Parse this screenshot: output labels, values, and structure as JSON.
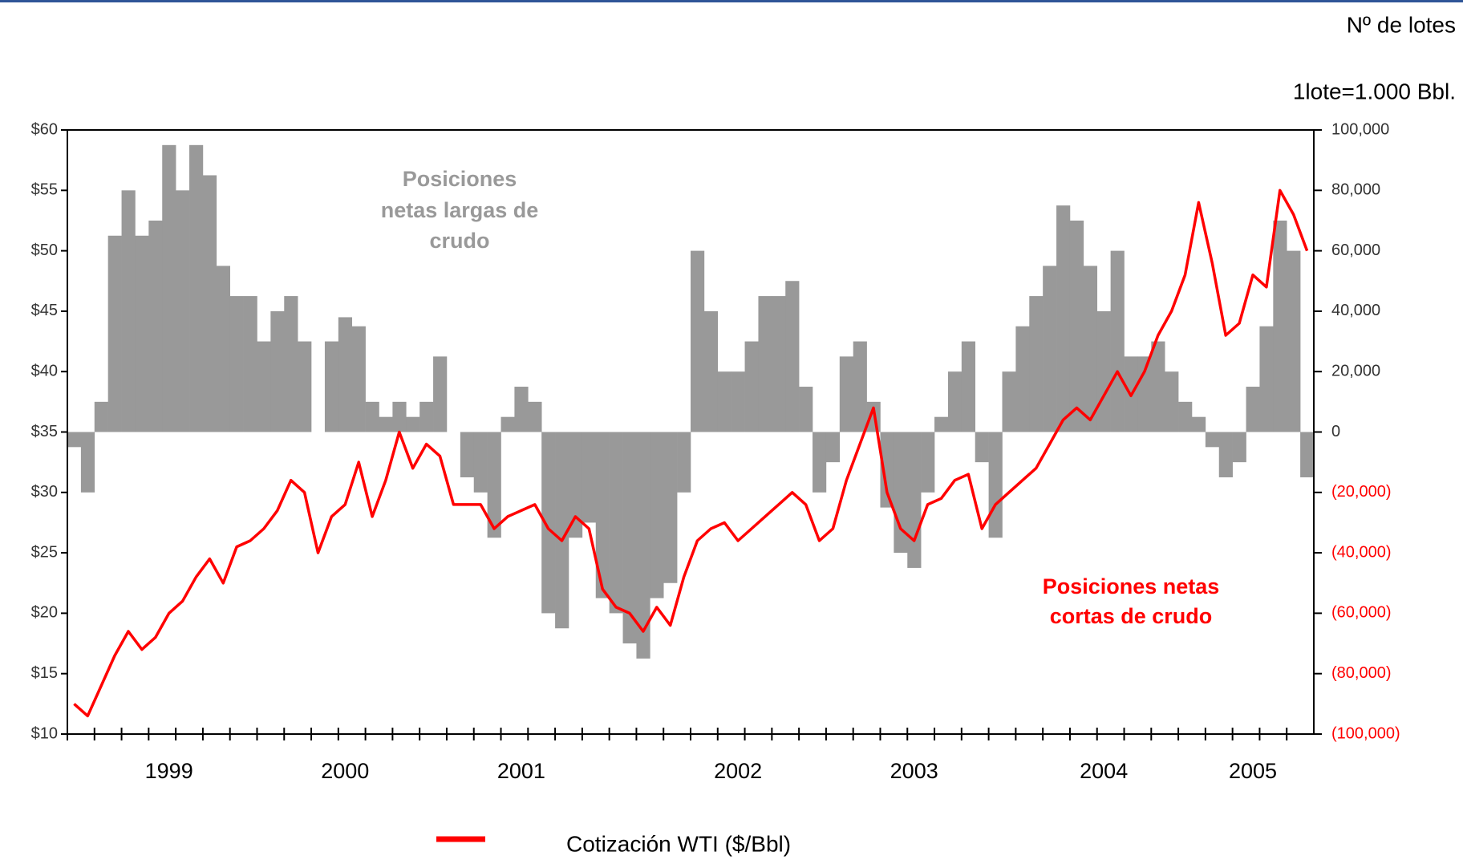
{
  "chart_data": {
    "type": "combo",
    "y2_label": [
      "Nº de lotes",
      "1lote=1.000 Bbl."
    ],
    "categories": [
      null,
      null,
      null,
      null,
      null,
      null,
      null,
      "1999",
      null,
      null,
      null,
      null,
      null,
      null,
      null,
      null,
      null,
      null,
      null,
      null,
      "2000",
      null,
      null,
      null,
      null,
      null,
      null,
      null,
      null,
      null,
      null,
      null,
      null,
      "2001",
      null,
      null,
      null,
      null,
      null,
      null,
      null,
      null,
      null,
      null,
      null,
      null,
      null,
      null,
      null,
      "2002",
      null,
      null,
      null,
      null,
      null,
      null,
      null,
      null,
      null,
      null,
      null,
      null,
      "2003",
      null,
      null,
      null,
      null,
      null,
      null,
      null,
      null,
      null,
      null,
      null,
      null,
      null,
      "2004",
      null,
      null,
      null,
      null,
      null,
      null,
      null,
      null,
      null,
      null,
      "2005",
      null,
      null,
      null,
      null
    ],
    "series": [
      {
        "type": "bar",
        "axis": "y2",
        "color": "#999999",
        "values": [
          -5000,
          -20000,
          10000,
          65000,
          80000,
          65000,
          70000,
          95000,
          80000,
          95000,
          85000,
          55000,
          45000,
          45000,
          30000,
          40000,
          45000,
          30000,
          0,
          30000,
          38000,
          35000,
          10000,
          5000,
          10000,
          5000,
          10000,
          25000,
          0,
          -15000,
          -20000,
          -35000,
          5000,
          15000,
          10000,
          -60000,
          -65000,
          -35000,
          -30000,
          -55000,
          -60000,
          -70000,
          -75000,
          -55000,
          -50000,
          -20000,
          60000,
          40000,
          20000,
          20000,
          30000,
          45000,
          45000,
          50000,
          15000,
          -20000,
          -10000,
          25000,
          30000,
          10000,
          -25000,
          -40000,
          -45000,
          -20000,
          5000,
          20000,
          30000,
          -10000,
          -35000,
          20000,
          35000,
          45000,
          55000,
          75000,
          70000,
          55000,
          40000,
          60000,
          25000,
          25000,
          30000,
          20000,
          10000,
          5000,
          -5000,
          -15000,
          -10000,
          15000,
          35000,
          70000,
          60000,
          -15000
        ]
      },
      {
        "type": "line",
        "axis": "y",
        "name": "Cotización WTI  ($/Bbl)",
        "color": "#ff0000",
        "values": [
          12.5,
          11.5,
          14,
          16.5,
          18.5,
          17,
          18,
          20,
          21,
          23,
          24.5,
          22.5,
          25.5,
          26,
          27,
          28.5,
          31,
          30,
          25,
          28,
          29,
          32.5,
          28,
          31,
          35,
          32,
          34,
          33,
          29,
          29,
          29,
          27,
          28,
          28.5,
          29,
          27,
          26,
          28,
          27,
          22,
          20.5,
          20,
          18.5,
          20.5,
          19,
          23,
          26,
          27,
          27.5,
          26,
          27,
          28,
          29,
          30,
          29,
          26,
          27,
          31,
          34,
          37,
          30,
          27,
          26,
          29,
          29.5,
          31,
          31.5,
          27,
          29,
          30,
          31,
          32,
          34,
          36,
          37,
          36,
          38,
          40,
          38,
          40,
          43,
          45,
          48,
          54,
          49,
          43,
          44,
          48,
          47,
          55,
          53,
          50
        ]
      }
    ],
    "ylim": [
      10,
      60
    ],
    "yticks": [
      {
        "value": 10,
        "label": "$10"
      },
      {
        "value": 15,
        "label": "$15"
      },
      {
        "value": 20,
        "label": "$20"
      },
      {
        "value": 25,
        "label": "$25"
      },
      {
        "value": 30,
        "label": "$30"
      },
      {
        "value": 35,
        "label": "$35"
      },
      {
        "value": 40,
        "label": "$40"
      },
      {
        "value": 45,
        "label": "$45"
      },
      {
        "value": 50,
        "label": "$50"
      },
      {
        "value": 55,
        "label": "$55"
      },
      {
        "value": 60,
        "label": "$60"
      }
    ],
    "y2lim": [
      -100000,
      100000
    ],
    "y2ticks": [
      {
        "value": -100000,
        "label": "(100,000)"
      },
      {
        "value": -80000,
        "label": "(80,000)"
      },
      {
        "value": -60000,
        "label": "(60,000)"
      },
      {
        "value": -40000,
        "label": "(40,000)"
      },
      {
        "value": -20000,
        "label": "(20,000)"
      },
      0,
      {
        "value": 20000,
        "label": "20,000"
      },
      {
        "value": 40000,
        "label": "40,000"
      },
      {
        "value": 60000,
        "label": "60,000"
      },
      {
        "value": 80000,
        "label": "80,000"
      },
      {
        "value": 100000,
        "label": "100,000"
      }
    ],
    "annotations": [
      {
        "lines": [
          "Posiciones",
          "netas largas de",
          "crudo"
        ],
        "color": "#999999"
      },
      {
        "lines": [
          "Posiciones netas",
          "cortas de crudo"
        ],
        "color": "#ff0000"
      }
    ]
  }
}
